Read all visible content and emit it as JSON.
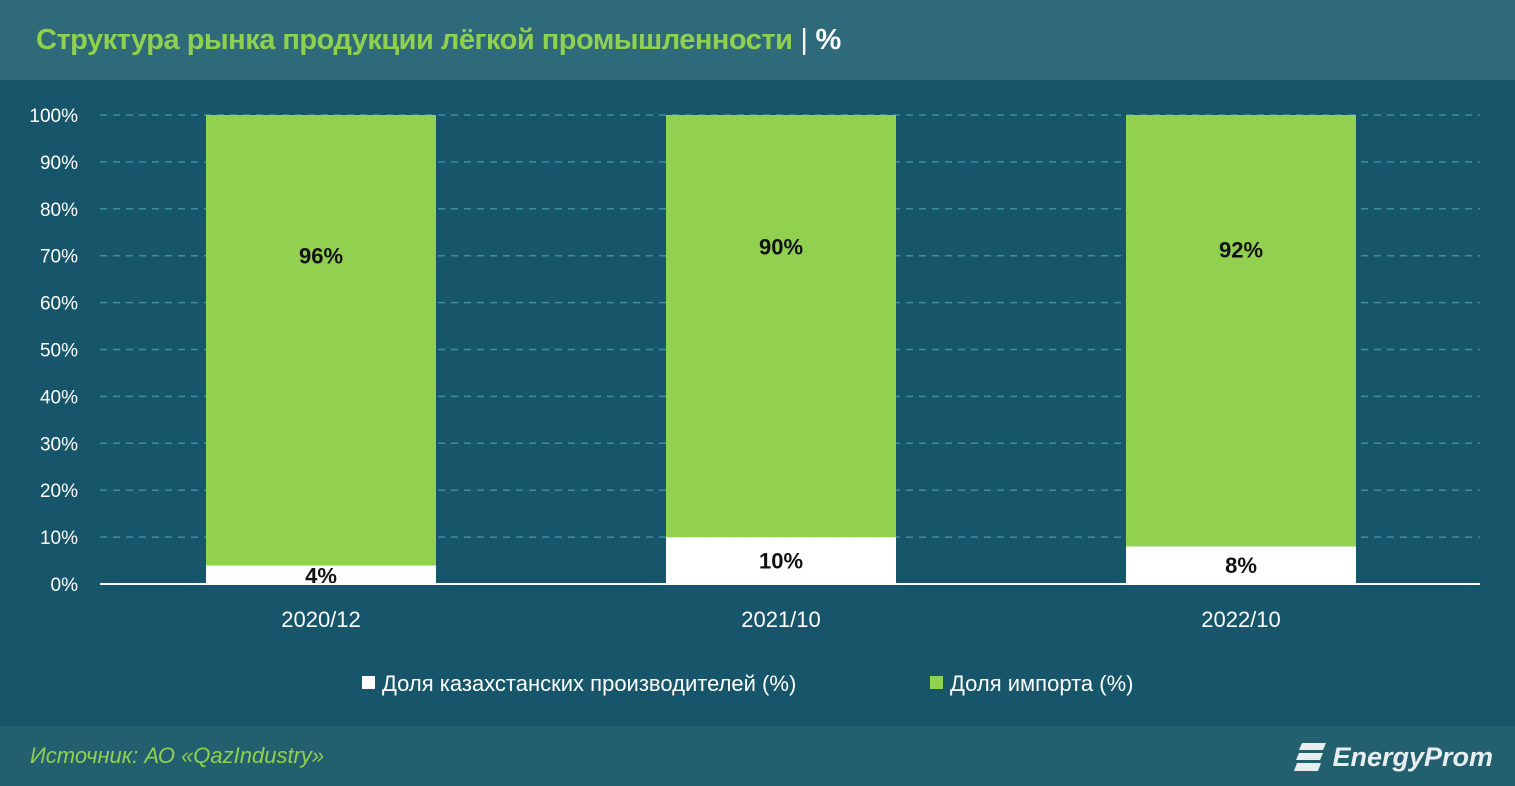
{
  "title": "Структура рынка продукции лёгкой промышленности",
  "title_unit": "%",
  "source": "Источник: АО «QazIndustry»",
  "logo_text": "EnergyProm",
  "colors": {
    "domestic": "#ffffff",
    "import": "#92d050",
    "background": "#17566a",
    "header": "#2e6a79",
    "title": "#8fd14f"
  },
  "chart_data": {
    "type": "bar",
    "stacked": true,
    "percent": true,
    "categories": [
      "2020/12",
      "2021/10",
      "2022/10"
    ],
    "series": [
      {
        "name": "Доля казахстанских производителей (%)",
        "values": [
          4,
          10,
          8
        ],
        "labels": [
          "4%",
          "10%",
          "8%"
        ]
      },
      {
        "name": "Доля импорта (%)",
        "values": [
          96,
          90,
          92
        ],
        "labels": [
          "96%",
          "90%",
          "92%"
        ]
      }
    ],
    "ylim": [
      0,
      100
    ],
    "yticks": [
      "0%",
      "10%",
      "20%",
      "30%",
      "40%",
      "50%",
      "60%",
      "70%",
      "80%",
      "90%",
      "100%"
    ],
    "grid": true,
    "legend": "bottom"
  }
}
